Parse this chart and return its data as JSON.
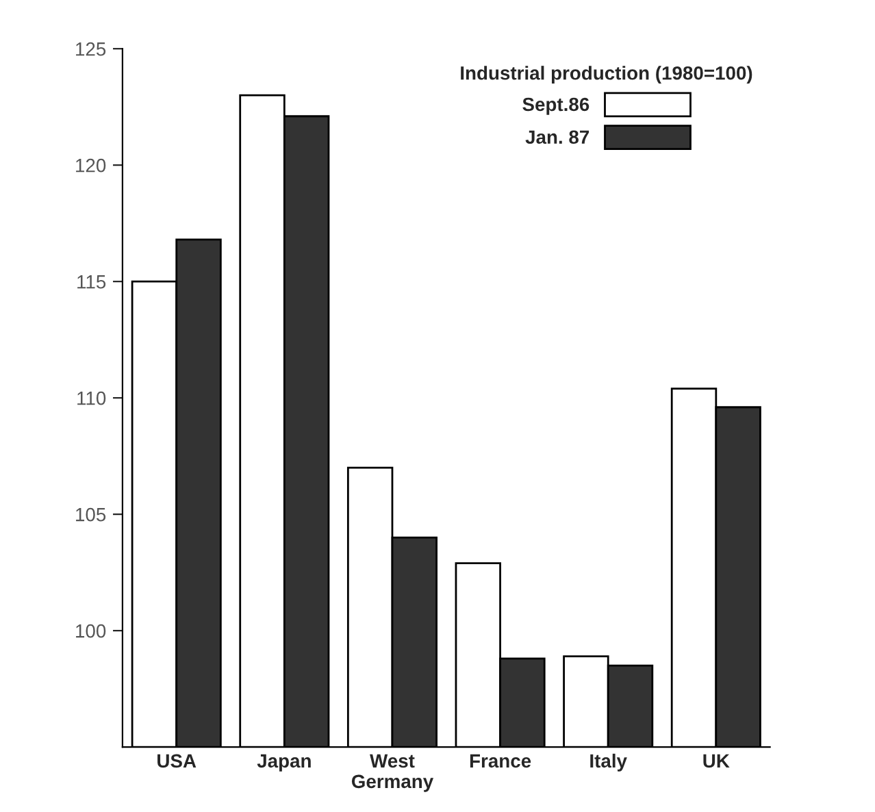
{
  "chart_data": {
    "type": "bar",
    "legend_title": "Industrial production (1980=100)",
    "categories": [
      "USA",
      "Japan",
      "West\nGermany",
      "France",
      "Italy",
      "UK"
    ],
    "series": [
      {
        "name": "Sept.86",
        "color": "#ffffff",
        "values": [
          115,
          123,
          107,
          102.9,
          98.9,
          110.4
        ]
      },
      {
        "name": "Jan. 87",
        "color": "#333333",
        "values": [
          116.8,
          122.1,
          104,
          98.8,
          98.5,
          109.6
        ]
      }
    ],
    "ylim": [
      95,
      125
    ],
    "yticks": [
      100,
      105,
      110,
      115,
      120,
      125
    ],
    "grid": false,
    "legend": "top right"
  }
}
